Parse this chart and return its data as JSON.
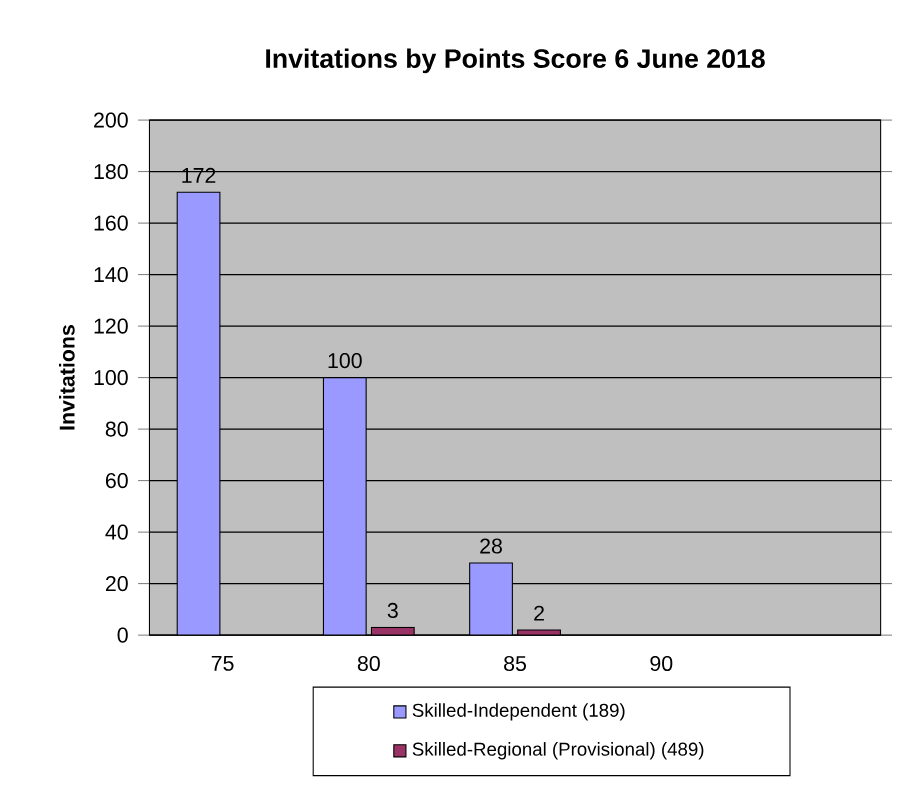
{
  "chart_data": {
    "type": "bar",
    "title": "Invitations by Points Score 6 June 2018",
    "ylabel": "Invitations",
    "categories": [
      "75",
      "80",
      "85",
      "90",
      null
    ],
    "series": [
      {
        "name": "Skilled-Independent (189)",
        "color": "#9999ff",
        "values": [
          172,
          100,
          28,
          null,
          null
        ]
      },
      {
        "name": "Skilled-Regional (Provisional) (489)",
        "color": "#993366",
        "values": [
          null,
          3,
          2,
          null,
          null
        ]
      }
    ],
    "ylim": [
      0,
      200
    ],
    "yticks": [
      0,
      20,
      40,
      60,
      80,
      100,
      120,
      140,
      160,
      180,
      200
    ],
    "grid": "y",
    "legend": "bottom",
    "data_labels": true
  }
}
